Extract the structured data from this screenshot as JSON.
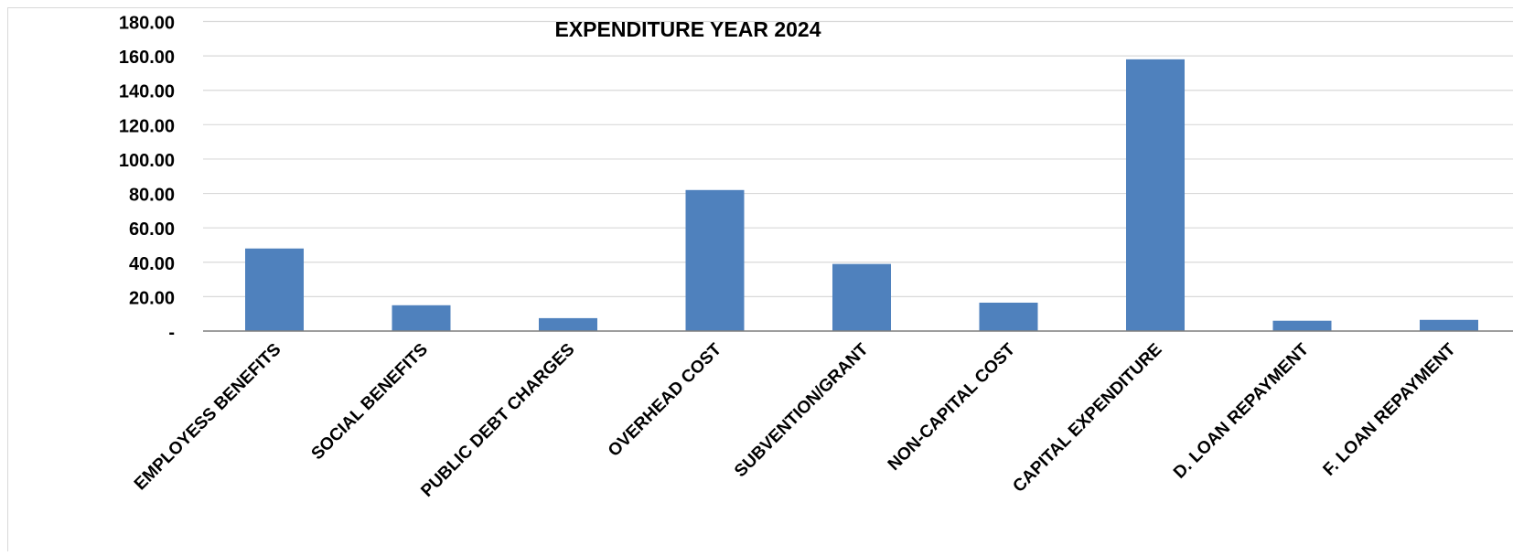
{
  "chart_data": {
    "type": "bar",
    "title": "EXPENDITURE YEAR 2024",
    "xlabel": "",
    "ylabel": "",
    "categories": [
      "EMPLOYESS BENEFITS",
      "SOCIAL BENEFITS",
      "PUBLIC DEBT CHARGES",
      "OVERHEAD COST",
      "SUBVENTION/GRANT",
      "NON-CAPITAL COST",
      "CAPITAL EXPENDITURE",
      "D. LOAN REPAYMENT",
      "F. LOAN REPAYMENT"
    ],
    "values": [
      48,
      15,
      7.5,
      82,
      39,
      16.5,
      158,
      6,
      6.5
    ],
    "ylim": [
      0,
      180
    ],
    "yticks": [
      "-",
      "20.00",
      "40.00",
      "60.00",
      "80.00",
      "100.00",
      "120.00",
      "140.00",
      "160.00",
      "180.00"
    ],
    "grid": true,
    "legend": "none",
    "colors": {
      "bar": "#4f81bd",
      "grid": "#d9d9d9",
      "axis": "#7f7f7f",
      "text": "#000000",
      "border": "#d9d9d9"
    }
  }
}
